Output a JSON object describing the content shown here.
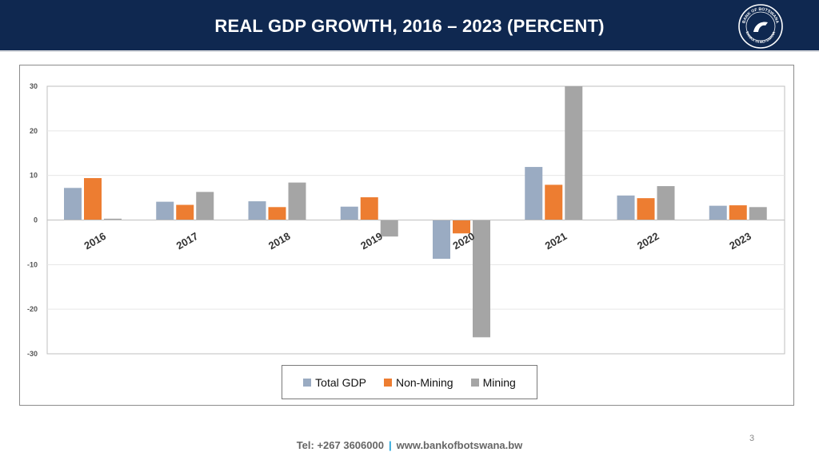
{
  "header": {
    "title": "REAL GDP GROWTH, 2016 – 2023 (PERCENT)",
    "logo_text_top": "BANK OF BOTSWANA",
    "logo_text_bottom": "BANKA YA BOTSWANA"
  },
  "colors": {
    "header_bg": "#0f2850",
    "total_gdp": "#9aabc2",
    "non_mining": "#ed7d31",
    "mining": "#a5a5a5",
    "grid": "#e6e6e6",
    "axis": "#bfbfbf"
  },
  "chart_data": {
    "type": "bar",
    "title": "REAL GDP GROWTH, 2016 – 2023 (PERCENT)",
    "categories": [
      "2016",
      "2017",
      "2018",
      "2019",
      "2020",
      "2021",
      "2022",
      "2023"
    ],
    "series": [
      {
        "name": "Total GDP",
        "values": [
          7.2,
          4.1,
          4.2,
          3.0,
          -8.7,
          11.9,
          5.5,
          3.2
        ]
      },
      {
        "name": "Non-Mining",
        "values": [
          9.4,
          3.4,
          2.9,
          5.1,
          -3.0,
          7.9,
          4.9,
          3.3
        ]
      },
      {
        "name": "Mining",
        "values": [
          0.3,
          6.3,
          8.4,
          -3.7,
          -26.3,
          32.0,
          7.6,
          2.9
        ]
      }
    ],
    "ylim": [
      -30,
      30
    ],
    "yticks": [
      30,
      20,
      10,
      0,
      -10,
      -20,
      -30
    ],
    "xlabel": "",
    "ylabel": "",
    "grid": true,
    "legend_position": "bottom-center"
  },
  "footer": {
    "tel": "Tel: +267 3606000",
    "separator": "|",
    "website": "www.bankofbotswana.bw",
    "page_number": "3"
  }
}
